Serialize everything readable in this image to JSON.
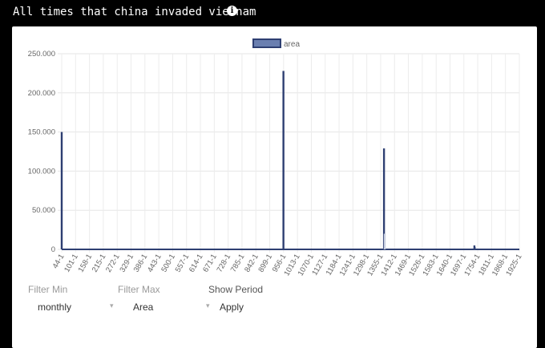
{
  "page": {
    "title": "All times that china invaded vietnam",
    "info_icon": "info-circle-icon"
  },
  "controls": {
    "filter_min_label": "Filter Min",
    "filter_max_label": "Filter Max",
    "show_period_label": "Show Period",
    "period_value": "monthly",
    "filter_value": "Area",
    "apply_label": "Apply"
  },
  "chart_data": {
    "type": "bar",
    "legend": [
      "area"
    ],
    "legend_position": "top",
    "grid": true,
    "ylim": [
      0,
      250000
    ],
    "ytick_labels": [
      "250.000",
      "200.000",
      "150.000",
      "100.000",
      "50.000",
      "0"
    ],
    "ytick_values": [
      250000,
      200000,
      150000,
      100000,
      50000,
      0
    ],
    "xtick_labels": [
      "44-1",
      "101-1",
      "158-1",
      "215-1",
      "272-1",
      "329-1",
      "386-1",
      "443-1",
      "500-1",
      "557-1",
      "614-1",
      "671-1",
      "728-1",
      "785-1",
      "842-1",
      "899-1",
      "956-1",
      "1013-1",
      "1070-1",
      "1127-1",
      "1184-1",
      "1241-1",
      "1298-1",
      "1355-1",
      "1412-1",
      "1469-1",
      "1526-1",
      "1583-1",
      "1640-1",
      "1697-1",
      "1754-1",
      "1811-1",
      "1868-1",
      "1925-1"
    ],
    "xlim": [
      44,
      1978
    ],
    "bar_color": "#2e3f72",
    "legend_fill": "#6a7fb0",
    "series": [
      {
        "name": "area",
        "points": [
          {
            "x": 44,
            "y": 150000
          },
          {
            "x": 981,
            "y": 228000
          },
          {
            "x": 1406,
            "y": 129000
          },
          {
            "x": 1409,
            "y": 20000
          },
          {
            "x": 1788,
            "y": 5000
          },
          {
            "x": 1789,
            "y": 3000
          }
        ]
      }
    ]
  }
}
